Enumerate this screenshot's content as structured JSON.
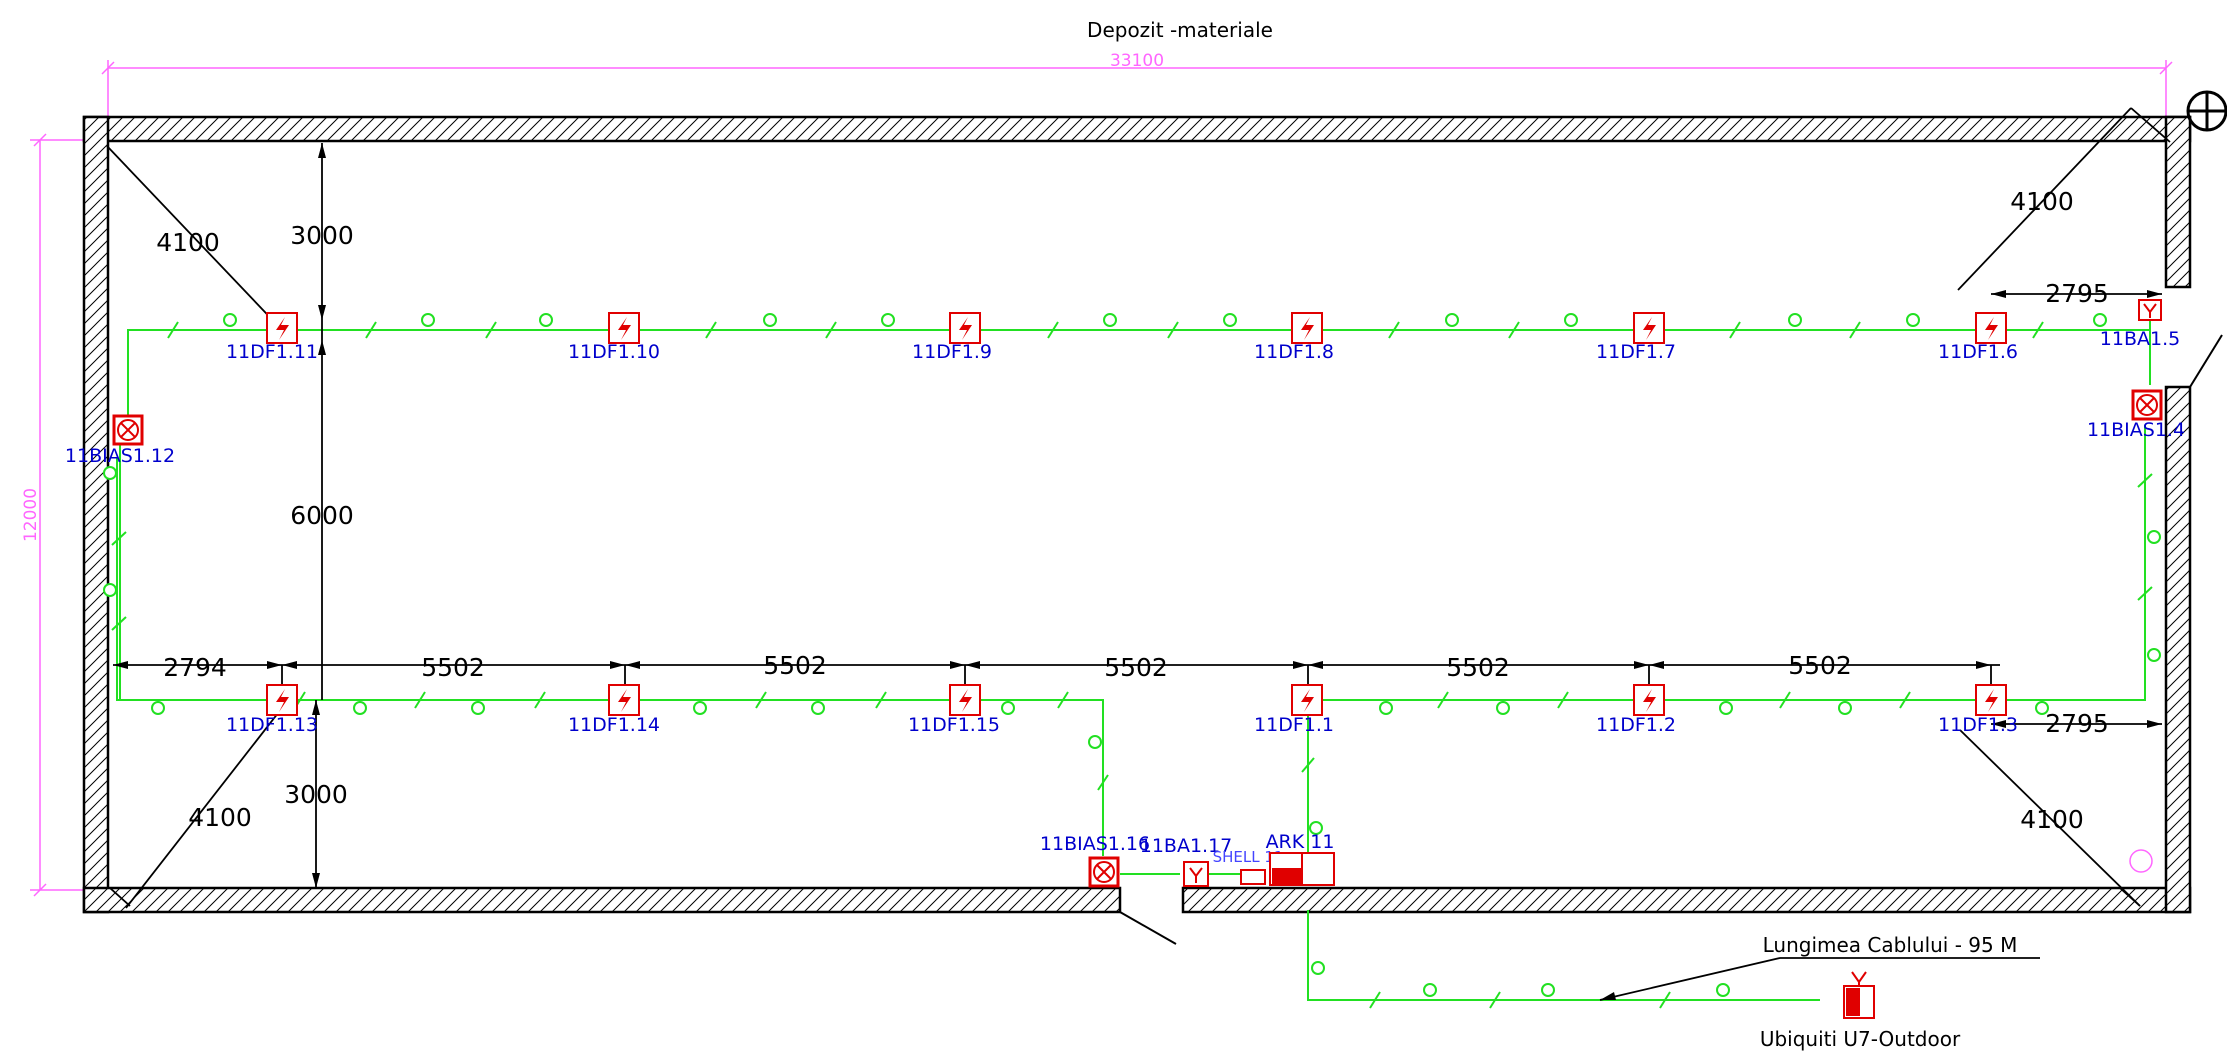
{
  "title": "Depozit -materiale",
  "overall": {
    "width": "33100",
    "height": "12000"
  },
  "colors": {
    "wall": "#000000",
    "cable": "#00dd00",
    "device": "#e00000",
    "label": "#0000cc",
    "dimension_pink": "#ff66ff"
  },
  "top_dims": {
    "corner_left": "4100",
    "corner_right": "4100",
    "vertical_top": "3000",
    "vertical_mid": "6000",
    "right_offset": "2795"
  },
  "bottom_dims": {
    "first": "2794",
    "spacings": [
      "5502",
      "5502",
      "5502",
      "5502",
      "5502"
    ],
    "corner_left": "4100",
    "corner_right": "4100",
    "vertical_bottom": "3000",
    "right_offset": "2795"
  },
  "top_row_devices": [
    "11DF1.11",
    "11DF1.10",
    "11DF1.9",
    "11DF1.8",
    "11DF1.7",
    "11DF1.6"
  ],
  "bottom_row_devices": [
    "11DF1.13",
    "11DF1.14",
    "11DF1.15",
    "11DF1.1",
    "11DF1.2",
    "11DF1.3"
  ],
  "other_devices": {
    "bias_left": "11BIAS1.12",
    "bias_right": "11BIAS1.4",
    "bias_door": "11BIAS1.16",
    "ba_top": "11BA1.5",
    "ba_door": "11BA1.17",
    "shell": "SHELL 11",
    "ark": "ARK 11"
  },
  "cable_note": "Lungimea Cablului  - 95 M",
  "outdoor_unit": "Ubiquiti U7-Outdoor"
}
